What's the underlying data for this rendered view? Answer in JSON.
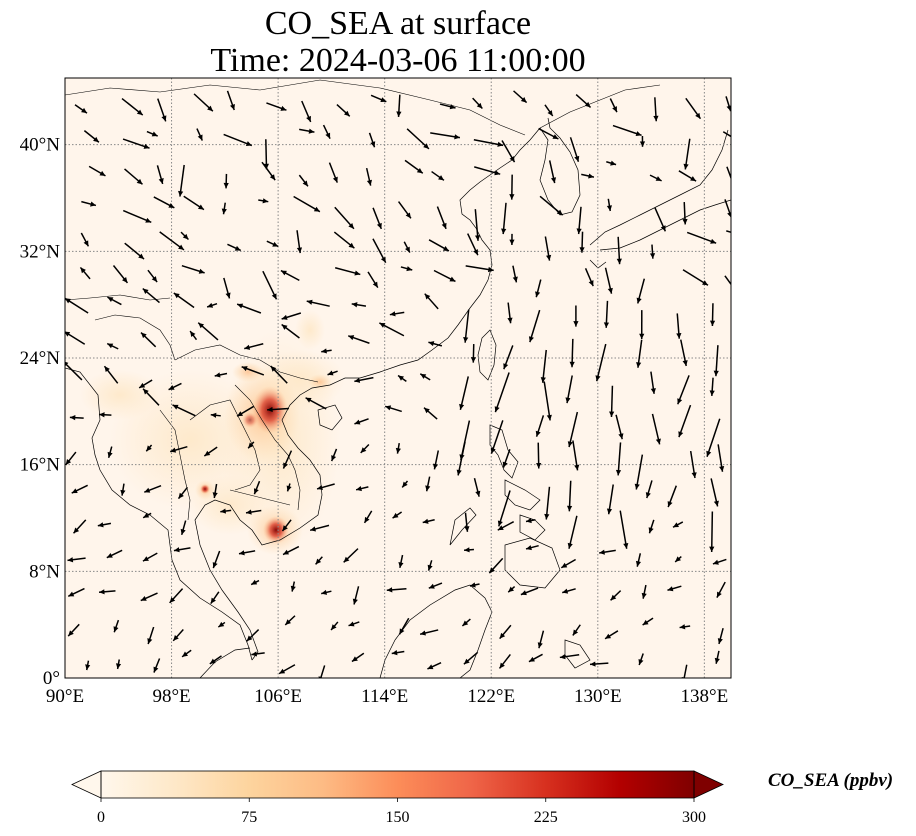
{
  "title": {
    "line1": "CO_SEA at surface",
    "line2": "Time: 2024-03-06 11:00:00"
  },
  "map": {
    "lon_range": [
      90,
      140
    ],
    "lat_range": [
      0,
      45
    ],
    "lon_ticks": [
      {
        "value": 90,
        "label": "90°E"
      },
      {
        "value": 98,
        "label": "98°E"
      },
      {
        "value": 106,
        "label": "106°E"
      },
      {
        "value": 114,
        "label": "114°E"
      },
      {
        "value": 122,
        "label": "122°E"
      },
      {
        "value": 130,
        "label": "130°E"
      },
      {
        "value": 138,
        "label": "138°E"
      }
    ],
    "lat_ticks": [
      {
        "value": 0,
        "label": "0°"
      },
      {
        "value": 8,
        "label": "8°N"
      },
      {
        "value": 16,
        "label": "16°N"
      },
      {
        "value": 24,
        "label": "24°N"
      },
      {
        "value": 32,
        "label": "32°N"
      },
      {
        "value": 40,
        "label": "40°N"
      }
    ],
    "gridlines": true,
    "background_color": "#fff5eb",
    "wind_vectors": true
  },
  "colorbar": {
    "title": "CO_SEA (ppbv)",
    "ticks": [
      {
        "value": 0,
        "label": "0"
      },
      {
        "value": 75,
        "label": "75"
      },
      {
        "value": 150,
        "label": "150"
      },
      {
        "value": 225,
        "label": "225"
      },
      {
        "value": 300,
        "label": "300"
      }
    ],
    "range": [
      0,
      300
    ],
    "extend": "both",
    "colormap": "OrRd",
    "colors": [
      "#fff7ec",
      "#fee8c8",
      "#fdd49e",
      "#fdbb84",
      "#fc8d59",
      "#ef6548",
      "#d7301f",
      "#b30000",
      "#7f0000"
    ]
  }
}
